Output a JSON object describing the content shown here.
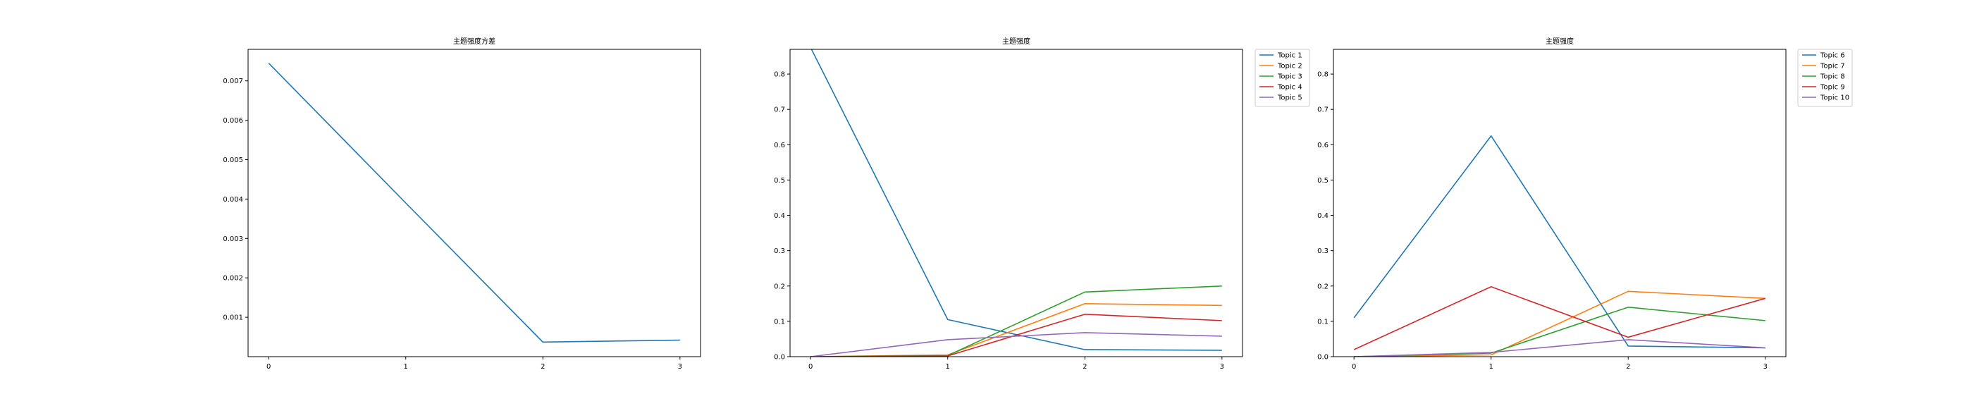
{
  "chart_data": [
    {
      "type": "line",
      "title": "主题强度方差",
      "x": [
        0,
        1,
        2,
        3
      ],
      "xticks": [
        "0",
        "1",
        "2",
        "3"
      ],
      "yticks": [
        "0.001",
        "0.002",
        "0.003",
        "0.004",
        "0.005",
        "0.006",
        "0.007"
      ],
      "xlim": [
        -0.15,
        3.15
      ],
      "ylim": [
        0.0,
        0.0078
      ],
      "series": [
        {
          "color": "#1f77b4",
          "values": [
            0.00745,
            0.0039,
            0.00037,
            0.00042
          ]
        }
      ],
      "legend": null
    },
    {
      "type": "line",
      "title": "主题强度",
      "x": [
        0,
        1,
        2,
        3
      ],
      "xticks": [
        "0",
        "1",
        "2",
        "3"
      ],
      "yticks": [
        "0.0",
        "0.1",
        "0.2",
        "0.3",
        "0.4",
        "0.5",
        "0.6",
        "0.7",
        "0.8"
      ],
      "xlim": [
        -0.15,
        3.15
      ],
      "ylim": [
        0.0,
        0.87
      ],
      "legend": "upper-right-outside",
      "series": [
        {
          "name": "Topic 1",
          "color": "#1f77b4",
          "values": [
            0.875,
            0.105,
            0.02,
            0.018
          ]
        },
        {
          "name": "Topic 2",
          "color": "#ff7f0e",
          "values": [
            0.0,
            0.005,
            0.15,
            0.145
          ]
        },
        {
          "name": "Topic 3",
          "color": "#2ca02c",
          "values": [
            0.0,
            0.003,
            0.183,
            0.2
          ]
        },
        {
          "name": "Topic 4",
          "color": "#d62728",
          "values": [
            0.0,
            0.002,
            0.12,
            0.102
          ]
        },
        {
          "name": "Topic 5",
          "color": "#9467bd",
          "values": [
            0.0,
            0.048,
            0.068,
            0.058
          ]
        }
      ]
    },
    {
      "type": "line",
      "title": "主题强度",
      "x": [
        0,
        1,
        2,
        3
      ],
      "xticks": [
        "0",
        "1",
        "2",
        "3"
      ],
      "yticks": [
        "0.0",
        "0.1",
        "0.2",
        "0.3",
        "0.4",
        "0.5",
        "0.6",
        "0.7",
        "0.8"
      ],
      "xlim": [
        -0.15,
        3.15
      ],
      "ylim": [
        0.0,
        0.87
      ],
      "legend": "upper-right-outside",
      "series": [
        {
          "name": "Topic 6",
          "color": "#1f77b4",
          "values": [
            0.11,
            0.625,
            0.03,
            0.025
          ]
        },
        {
          "name": "Topic 7",
          "color": "#ff7f0e",
          "values": [
            0.0,
            0.005,
            0.185,
            0.165
          ]
        },
        {
          "name": "Topic 8",
          "color": "#2ca02c",
          "values": [
            0.0,
            0.01,
            0.14,
            0.102
          ]
        },
        {
          "name": "Topic 9",
          "color": "#d62728",
          "values": [
            0.02,
            0.198,
            0.055,
            0.165
          ]
        },
        {
          "name": "Topic 10",
          "color": "#9467bd",
          "values": [
            0.0,
            0.012,
            0.048,
            0.025
          ]
        }
      ]
    }
  ]
}
